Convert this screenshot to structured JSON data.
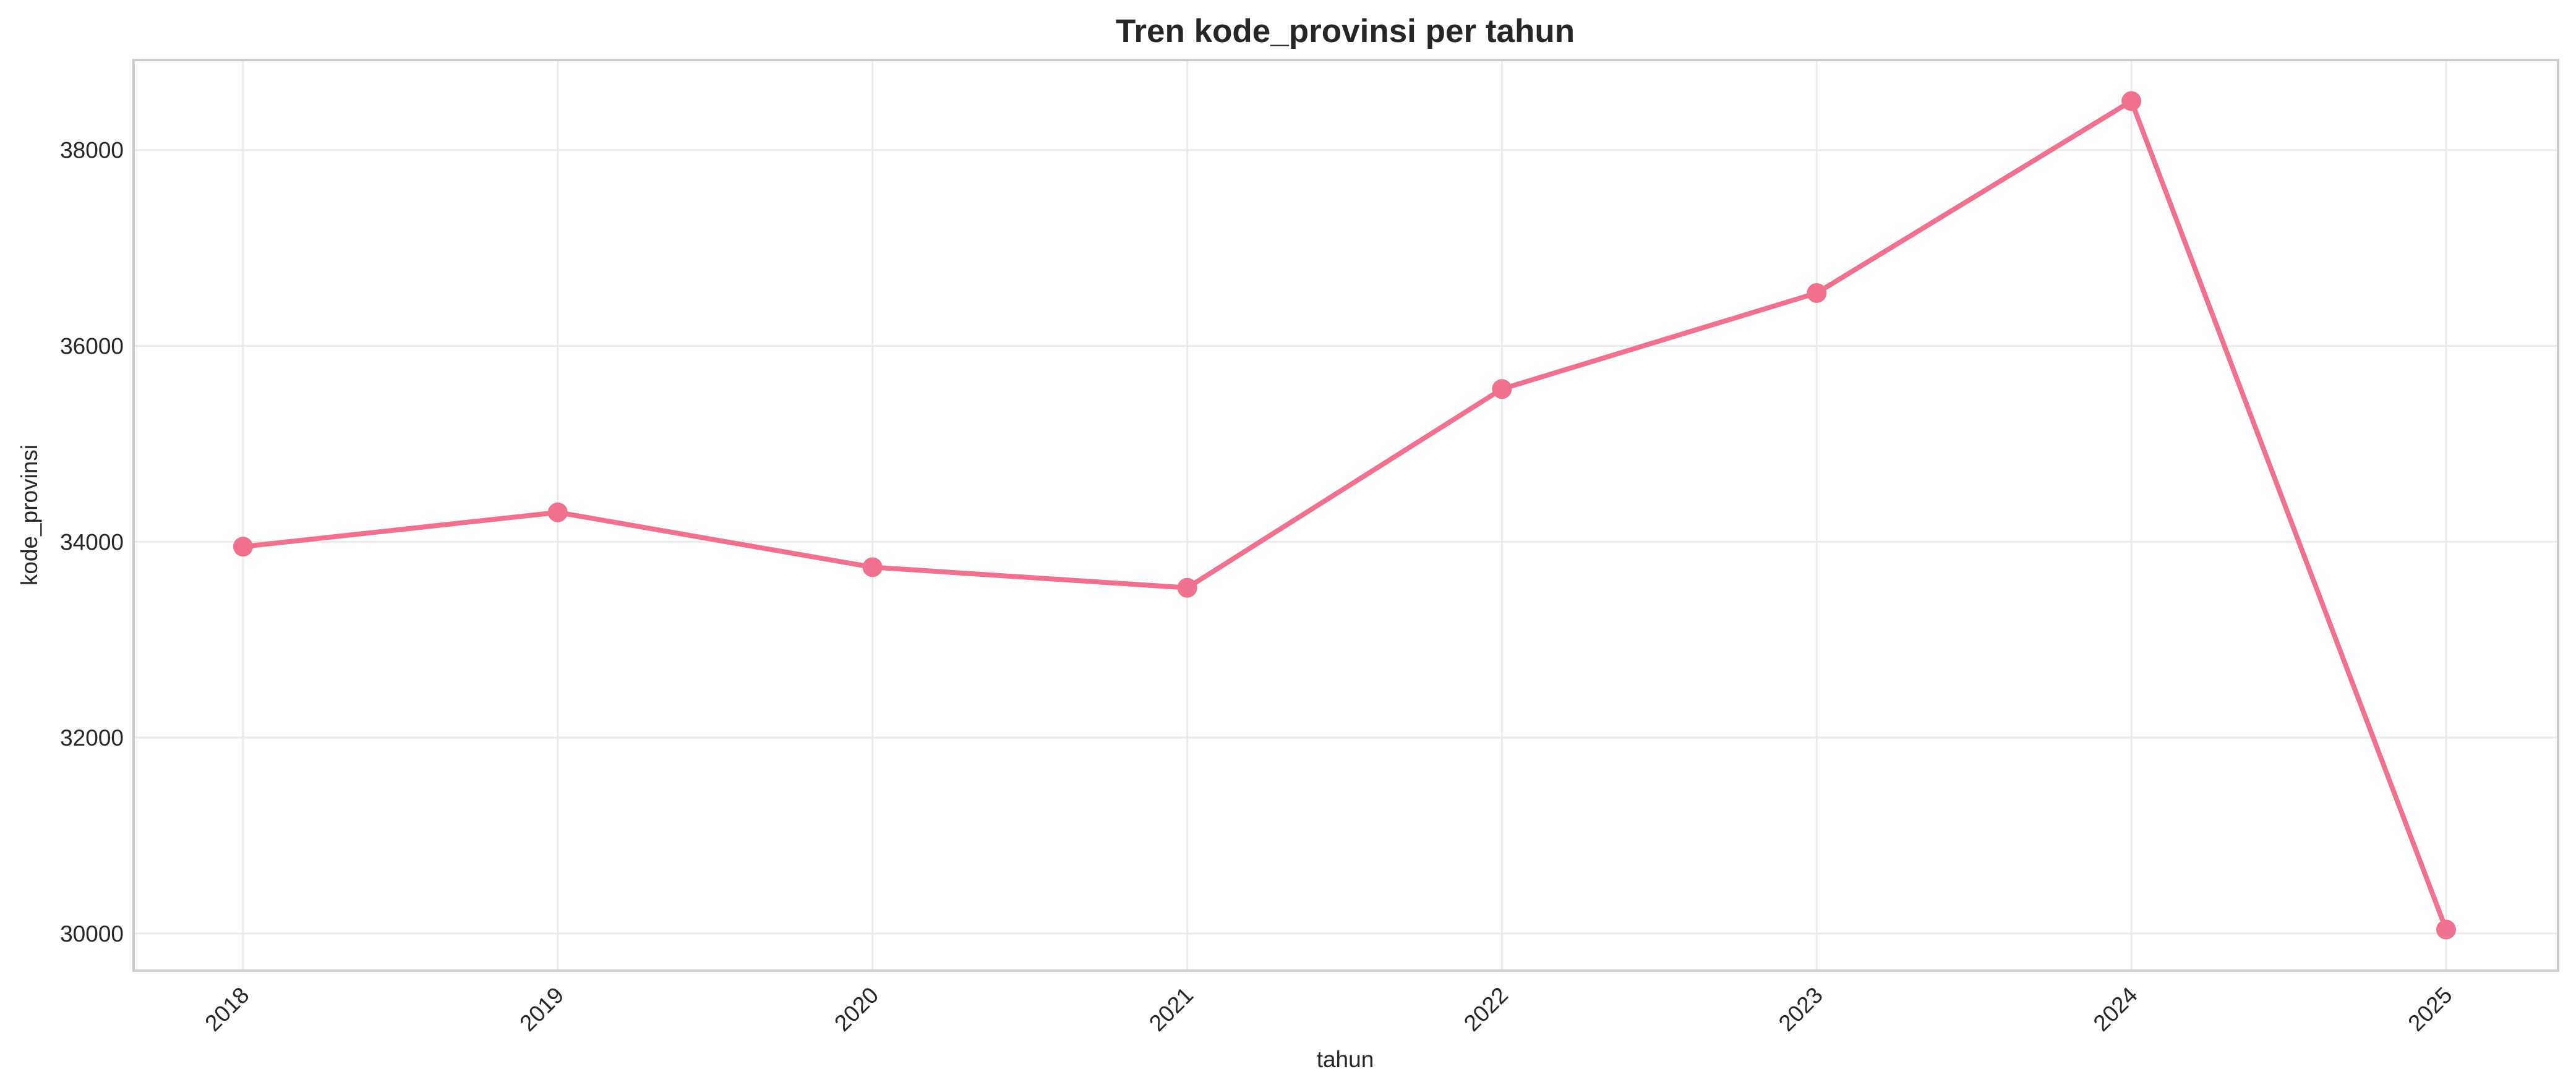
{
  "chart_data": {
    "type": "line",
    "title": "Tren kode_provinsi per tahun",
    "xlabel": "tahun",
    "ylabel": "kode_provinsi",
    "x": [
      "2018",
      "2019",
      "2020",
      "2021",
      "2022",
      "2023",
      "2024",
      "2025"
    ],
    "series": [
      {
        "values": [
          33950,
          34300,
          33740,
          33530,
          35560,
          36540,
          38500,
          30040
        ],
        "color": "#f07090"
      }
    ],
    "yticks": [
      "30000",
      "32000",
      "34000",
      "36000",
      "38000"
    ],
    "ylim": [
      29620,
      38920
    ],
    "grid": true,
    "legend": "none",
    "marker": "circle"
  }
}
